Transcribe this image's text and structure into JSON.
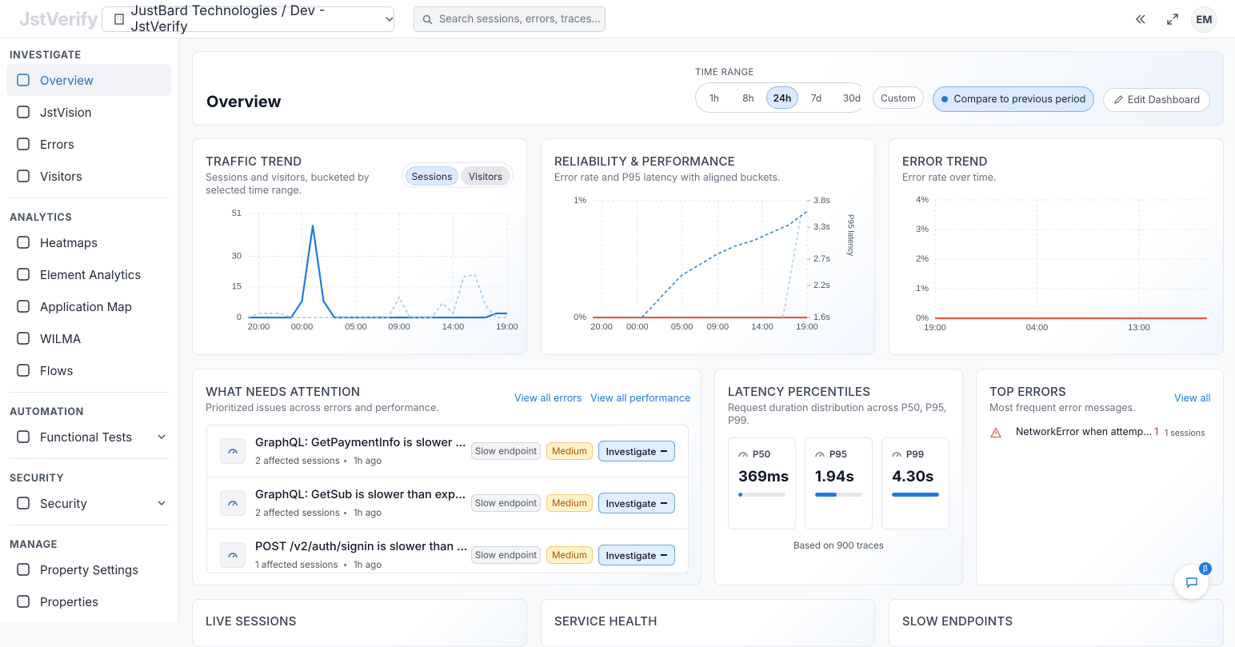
{
  "header": {
    "logo": "JstVerify",
    "org": "JustBard Technologies / Dev - JstVerify",
    "search": "Search sessions, errors, traces...",
    "avatar": "EM"
  },
  "sidebar": {
    "sections": [
      {
        "title": "INVESTIGATE",
        "items": [
          "Overview",
          "JstVision",
          "Errors",
          "Visitors"
        ]
      },
      {
        "title": "ANALYTICS",
        "items": [
          "Heatmaps",
          "Element Analytics",
          "Application Map",
          "WILMA",
          "Flows"
        ]
      },
      {
        "title": "AUTOMATION",
        "items": [
          "Functional Tests"
        ]
      },
      {
        "title": "SECURITY",
        "items": [
          "Security"
        ]
      },
      {
        "title": "MANAGE",
        "items": [
          "Property Settings",
          "Properties"
        ]
      }
    ]
  },
  "overview": {
    "title": "Overview",
    "time_range_label": "TIME RANGE",
    "ranges": [
      "1h",
      "8h",
      "24h",
      "7d",
      "30d"
    ],
    "active_range": "24h",
    "custom": "Custom",
    "compare": "Compare to previous period",
    "edit": "Edit Dashboard"
  },
  "traffic": {
    "title": "TRAFFIC TREND",
    "subtitle": "Sessions and visitors, bucketed by selected time range.",
    "type": "line",
    "grid": true,
    "x": [
      0,
      1,
      2,
      3,
      4,
      5,
      6,
      7,
      8,
      9,
      10,
      11,
      12,
      13,
      14,
      15,
      16,
      17,
      18,
      19,
      20,
      21,
      22,
      23,
      24
    ],
    "xlim": [
      0,
      24
    ],
    "xticks": [
      {
        "value": 1,
        "label": "20:00"
      },
      {
        "value": 5,
        "label": "00:00"
      },
      {
        "value": 10,
        "label": "05:00"
      },
      {
        "value": 14,
        "label": "09:00"
      },
      {
        "value": 19,
        "label": "14:00"
      },
      {
        "value": 24,
        "label": "19:00"
      }
    ],
    "ylim": [
      0,
      51
    ],
    "yticks": [
      0,
      15,
      30,
      51
    ],
    "series": [
      {
        "name": "Sessions",
        "color": "#1f7ae0",
        "dashed": false,
        "values": [
          0,
          0,
          0,
          0,
          0,
          8,
          45,
          8,
          0,
          0,
          0,
          0,
          0,
          0,
          0,
          0,
          0,
          0,
          0,
          0,
          0,
          0,
          0,
          2,
          2
        ]
      },
      {
        "name": "Visitors",
        "color": "#9fc8f0",
        "dashed": true,
        "values": [
          0,
          2,
          2,
          2,
          0,
          0,
          0,
          0,
          0,
          0,
          0,
          0,
          0,
          0,
          10,
          0,
          0,
          0,
          7,
          2,
          20,
          21,
          6,
          0,
          0
        ]
      }
    ]
  },
  "reliability": {
    "title": "RELIABILITY & PERFORMANCE",
    "subtitle": "Error rate and P95 latency with aligned buckets.",
    "type": "line",
    "grid": true,
    "xlim": [
      0,
      24
    ],
    "xticks": [
      {
        "value": 1,
        "label": "20:00"
      },
      {
        "value": 5,
        "label": "00:00"
      },
      {
        "value": 10,
        "label": "05:00"
      },
      {
        "value": 14,
        "label": "09:00"
      },
      {
        "value": 19,
        "label": "14:00"
      },
      {
        "value": 24,
        "label": "19:00"
      }
    ],
    "ylim": [
      0,
      1
    ],
    "yticks": [
      {
        "value": 0,
        "label": "0%"
      },
      {
        "value": 1,
        "label": "1%"
      }
    ],
    "y2lim": [
      1.6,
      3.8
    ],
    "y2ticks": [
      {
        "value": 1.6,
        "label": "1.6s"
      },
      {
        "value": 2.2,
        "label": "2.2s"
      },
      {
        "value": 2.7,
        "label": "2.7s"
      },
      {
        "value": 3.3,
        "label": "3.3s"
      },
      {
        "value": 3.8,
        "label": "3.8s"
      }
    ],
    "y2label": "P95 latency",
    "series": [
      {
        "color": "#e05a4a",
        "dashed": false,
        "x": [
          0,
          24
        ],
        "values": [
          0,
          0
        ]
      },
      {
        "color": "#2b8cc4",
        "dashed": true,
        "axis": "y2",
        "x": [
          5.5,
          8,
          10,
          12,
          14,
          16,
          18,
          20,
          22,
          24
        ],
        "values": [
          1.6,
          2.05,
          2.4,
          2.6,
          2.8,
          2.95,
          3.05,
          3.2,
          3.35,
          3.6
        ]
      },
      {
        "color": "#a9d3f0",
        "dashed": true,
        "axis": "y2",
        "x": [
          21.3,
          23.3
        ],
        "values": [
          1.6,
          3.5
        ]
      }
    ]
  },
  "error_trend": {
    "title": "ERROR TREND",
    "subtitle": "Error rate over time.",
    "type": "line",
    "grid": true,
    "xlim": [
      0,
      24
    ],
    "xticks": [
      {
        "value": 0,
        "label": "19:00"
      },
      {
        "value": 9,
        "label": "04:00"
      },
      {
        "value": 18,
        "label": "13:00"
      }
    ],
    "ylim": [
      0,
      4
    ],
    "yticks": [
      {
        "value": 0,
        "label": "0%"
      },
      {
        "value": 1,
        "label": "1%"
      },
      {
        "value": 2,
        "label": "2%"
      },
      {
        "value": 3,
        "label": "3%"
      },
      {
        "value": 4,
        "label": "4%"
      }
    ],
    "series": [
      {
        "color": "#e05a4a",
        "dashed": false,
        "x": [
          0,
          24
        ],
        "values": [
          0,
          0
        ]
      }
    ]
  },
  "attention": {
    "title": "WHAT NEEDS ATTENTION",
    "subtitle": "Prioritized issues across errors and performance.",
    "link_errors": "View all errors",
    "link_performance": "View all performance",
    "items": [
      {
        "title": "GraphQL: GetPaymentInfo is slower ...",
        "meta": "2 affected sessions",
        "time": "1h ago",
        "tag": "Slow endpoint",
        "severity": "Medium",
        "action": "Investigate"
      },
      {
        "title": "GraphQL: GetSub is slower than exp...",
        "meta": "2 affected sessions",
        "time": "1h ago",
        "tag": "Slow endpoint",
        "severity": "Medium",
        "action": "Investigate"
      },
      {
        "title": "POST /v2/auth/signin is slower than ...",
        "meta": "1 affected sessions",
        "time": "1h ago",
        "tag": "Slow endpoint",
        "severity": "Medium",
        "action": "Investigate"
      }
    ]
  },
  "latency": {
    "title": "LATENCY PERCENTILES",
    "subtitle": "Request duration distribution across P50, P95, P99.",
    "labels": [
      "P50",
      "P95",
      "P99"
    ],
    "values": [
      369,
      1940,
      4300
    ],
    "value_labels": [
      "369ms",
      "1.94s",
      "4.30s"
    ],
    "color": "#1f7ae0",
    "footer": "Based on 900 traces"
  },
  "top_errors": {
    "title": "TOP ERRORS",
    "subtitle": "Most frequent error messages.",
    "link": "View all",
    "items": [
      {
        "message": "NetworkError when attemp...",
        "count": 1,
        "sessions": "1 sessions"
      }
    ]
  },
  "bottom": {
    "titles": [
      "LIVE SESSIONS",
      "SERVICE HEALTH",
      "SLOW ENDPOINTS"
    ]
  },
  "chat_badge": "β"
}
